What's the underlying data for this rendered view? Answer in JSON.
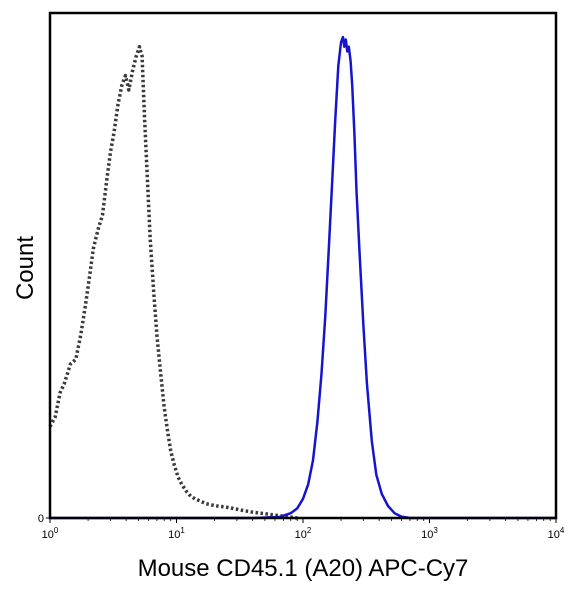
{
  "chart_data": {
    "type": "line",
    "title": "",
    "xlabel": "Mouse CD45.1 (A20) APC-Cy7",
    "ylabel": "Count",
    "x_scale": "log",
    "xlim": [
      1,
      10000
    ],
    "ylim": [
      0,
      1.05
    ],
    "grid": false,
    "legend": "none",
    "x_ticks": [
      {
        "value": 1,
        "base": "10",
        "exp": "0"
      },
      {
        "value": 10,
        "base": "10",
        "exp": "1"
      },
      {
        "value": 100,
        "base": "10",
        "exp": "2"
      },
      {
        "value": 1000,
        "base": "10",
        "exp": "3"
      },
      {
        "value": 10000,
        "base": "10",
        "exp": "4"
      }
    ],
    "y_ticks": [
      {
        "value": 0,
        "label": "0"
      }
    ],
    "series": [
      {
        "style": "dotted",
        "color": "#3a3a3a",
        "x": [
          1.0,
          1.1,
          1.2,
          1.3,
          1.45,
          1.6,
          1.75,
          1.9,
          2.05,
          2.2,
          2.4,
          2.6,
          2.8,
          3.0,
          3.2,
          3.45,
          3.7,
          3.95,
          4.2,
          4.5,
          4.8,
          5.1,
          5.35,
          5.6,
          5.9,
          6.2,
          6.6,
          7.0,
          7.5,
          8.0,
          8.5,
          9.0,
          9.6,
          10.3,
          11.0,
          12.0,
          13.0,
          14.0,
          15.5,
          17.0,
          19.0,
          21.0,
          24.0,
          28.0,
          33.0,
          40.0,
          50.0,
          60.0,
          75.0,
          90.0
        ],
        "y": [
          0.19,
          0.21,
          0.26,
          0.28,
          0.32,
          0.33,
          0.38,
          0.44,
          0.5,
          0.56,
          0.6,
          0.63,
          0.7,
          0.76,
          0.8,
          0.86,
          0.9,
          0.92,
          0.89,
          0.93,
          0.96,
          0.98,
          0.96,
          0.83,
          0.7,
          0.58,
          0.47,
          0.38,
          0.3,
          0.23,
          0.18,
          0.14,
          0.11,
          0.085,
          0.07,
          0.055,
          0.045,
          0.04,
          0.035,
          0.03,
          0.027,
          0.025,
          0.023,
          0.02,
          0.016,
          0.012,
          0.009,
          0.006,
          0.003,
          0.0
        ]
      },
      {
        "style": "solid",
        "color": "#1515d0",
        "x": [
          1.0,
          40.0,
          65.0,
          80.0,
          90.0,
          100.0,
          110.0,
          120.0,
          130.0,
          140.0,
          150.0,
          160.0,
          170.0,
          180.0,
          190.0,
          200.0,
          207.0,
          212.0,
          218.0,
          224.0,
          230.0,
          238.0,
          245.0,
          255.0,
          265.0,
          280.0,
          300.0,
          320.0,
          350.0,
          380.0,
          420.0,
          470.0,
          530.0,
          600.0,
          700.0,
          10000.0
        ],
        "y": [
          0.0,
          0.0,
          0.002,
          0.01,
          0.02,
          0.04,
          0.07,
          0.12,
          0.2,
          0.3,
          0.42,
          0.56,
          0.7,
          0.83,
          0.94,
          0.99,
          1.0,
          0.98,
          0.995,
          0.97,
          0.98,
          0.95,
          0.9,
          0.8,
          0.68,
          0.55,
          0.4,
          0.28,
          0.16,
          0.09,
          0.05,
          0.025,
          0.01,
          0.003,
          0.0,
          0.0
        ]
      }
    ]
  }
}
